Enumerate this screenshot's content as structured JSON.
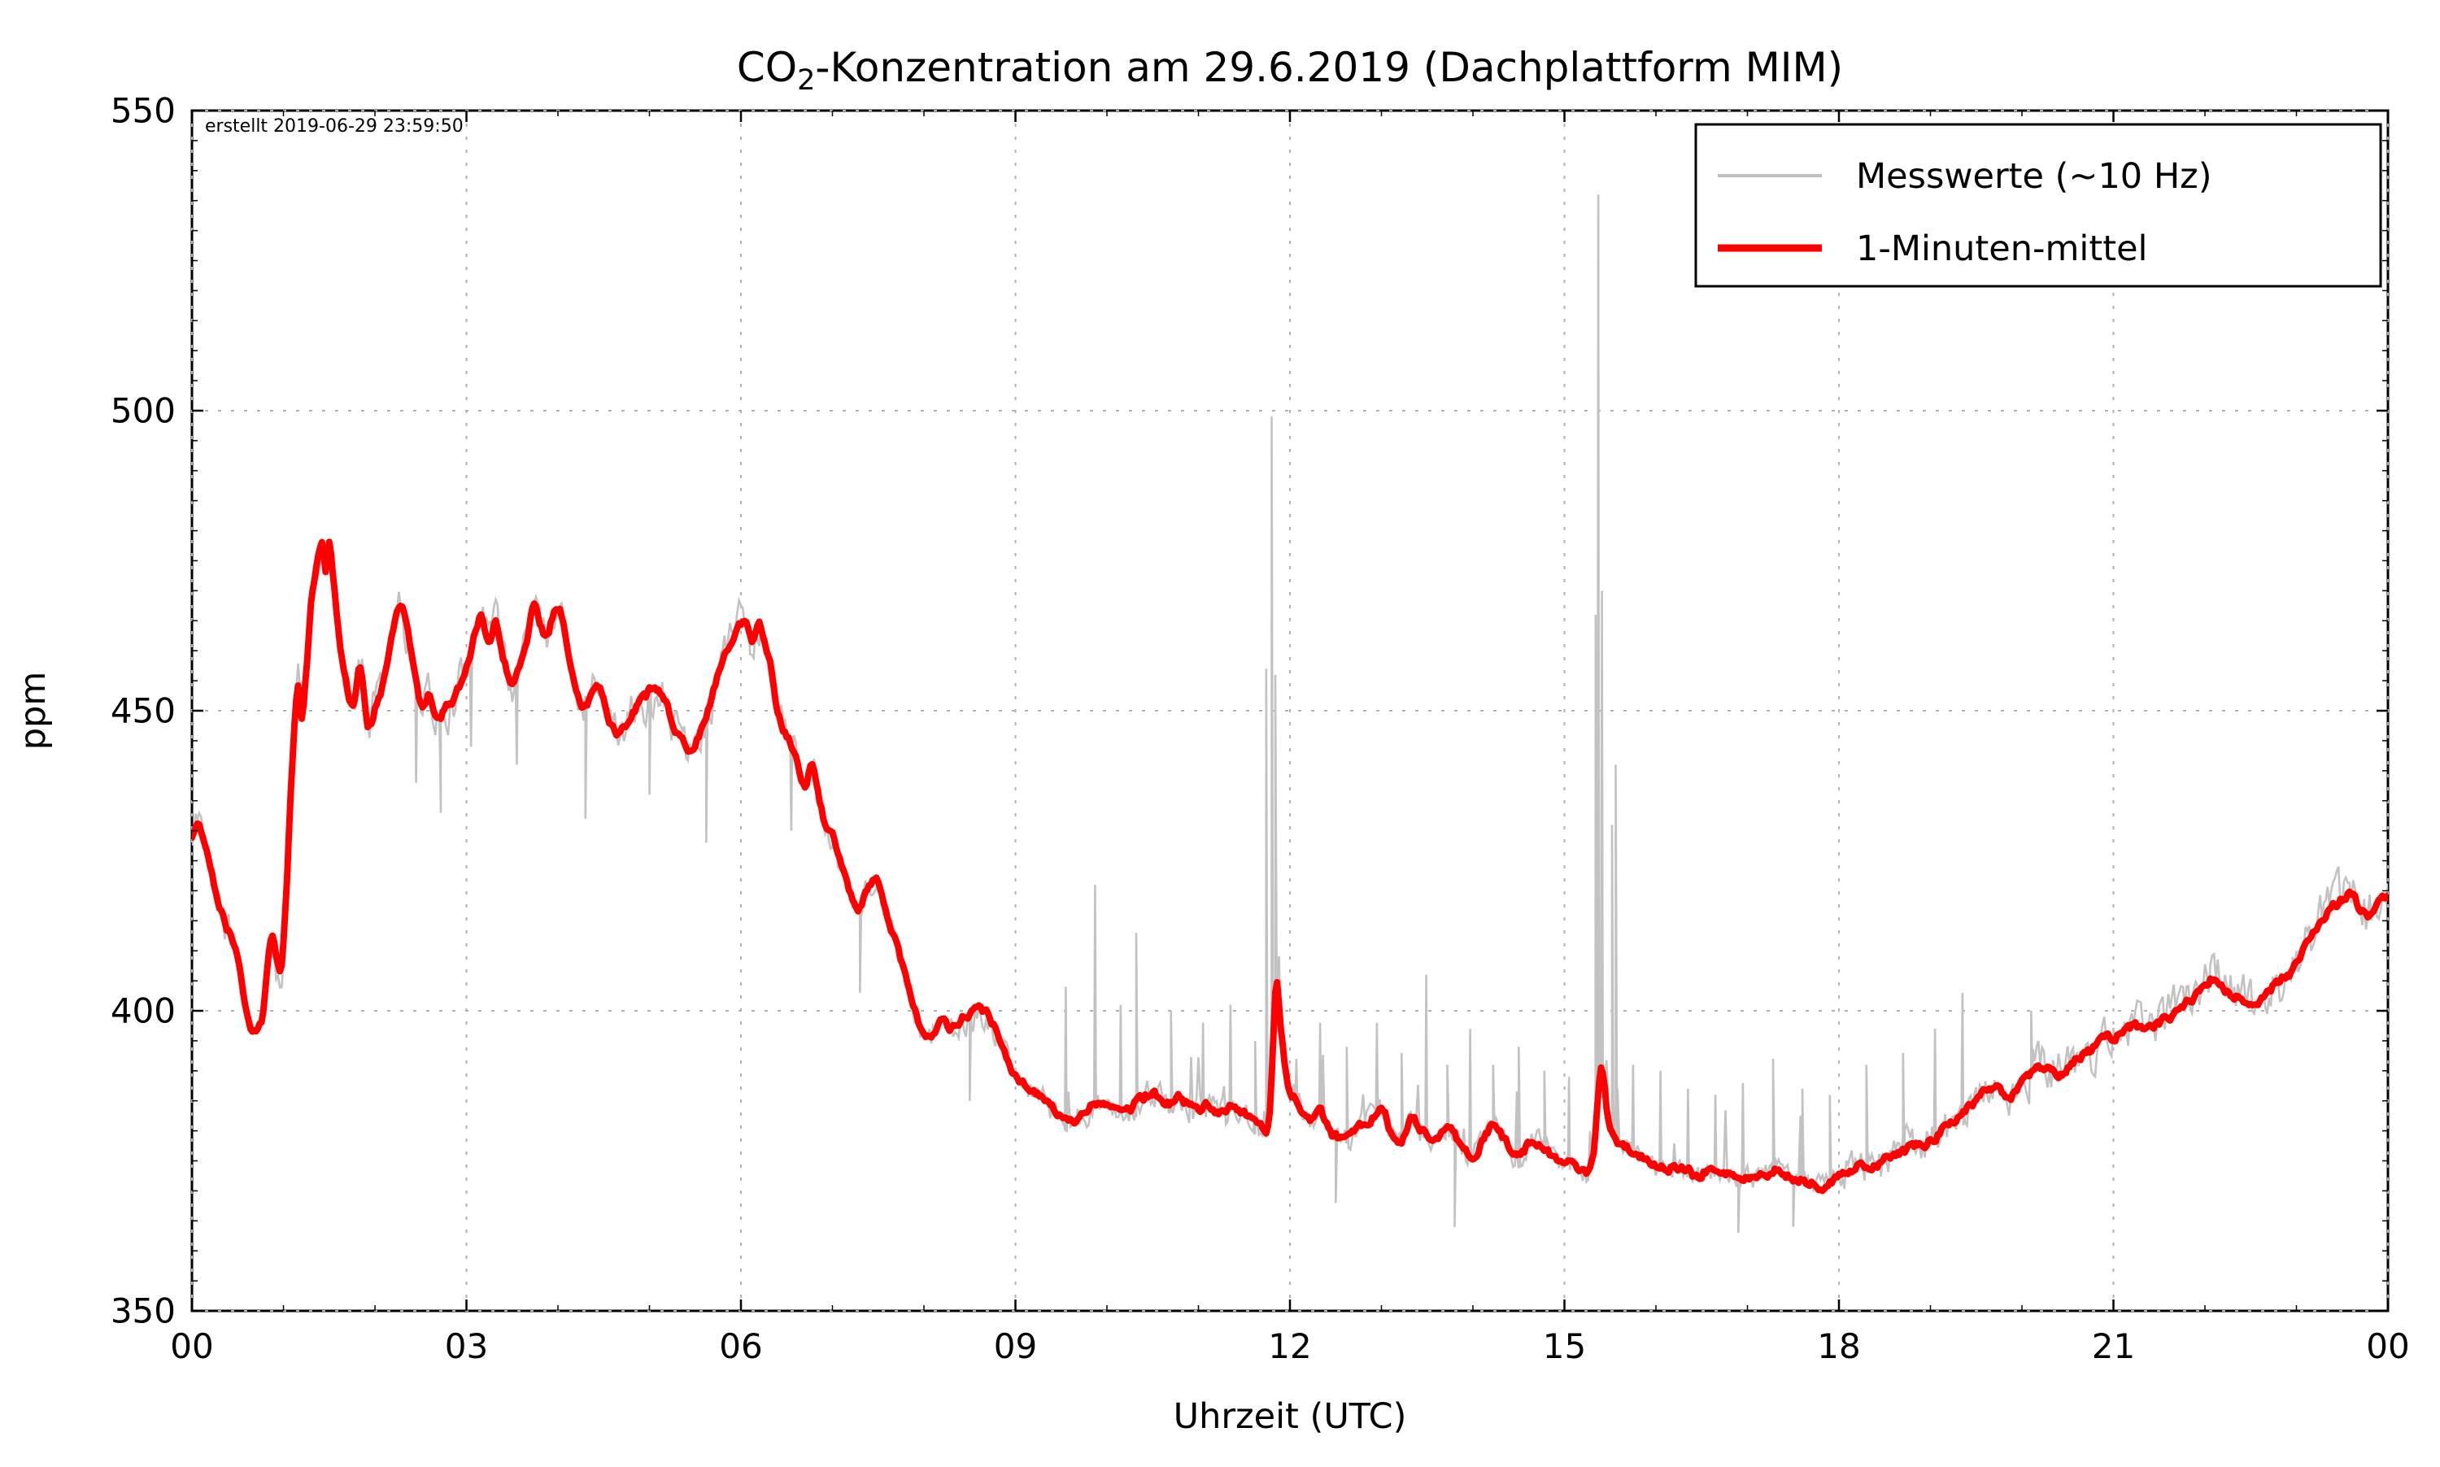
{
  "title": {
    "prefix": "CO",
    "sub": "2",
    "rest": "-Konzentration am 29.6.2019 (Dachplattform MIM)"
  },
  "created_note": "erstellt 2019-06-29 23:59:50",
  "axes": {
    "x_label": "Uhrzeit (UTC)",
    "y_label": "ppm",
    "x_tick_labels": [
      "00",
      "03",
      "06",
      "09",
      "12",
      "15",
      "18",
      "21",
      "00"
    ],
    "x_tick_hours": [
      0,
      3,
      6,
      9,
      12,
      15,
      18,
      21,
      24
    ],
    "x_minor_step_hours": 1,
    "y_tick_labels": [
      "350",
      "400",
      "450",
      "500",
      "550"
    ],
    "y_tick_values": [
      350,
      400,
      450,
      500,
      550
    ],
    "y_minor_step": 5,
    "x_min": 0,
    "x_max": 24,
    "y_min": 350,
    "y_max": 550
  },
  "legend": {
    "items": [
      {
        "label": "Messwerte (~10 Hz)",
        "color": "#c2c2c2",
        "line_width": 4
      },
      {
        "label": "1-Minuten-mittel",
        "color": "#ff0000",
        "line_width": 9
      }
    ]
  },
  "colors": {
    "measurement": "#c2c2c2",
    "mean": "#ff0000",
    "grid": "#b0b0b0",
    "spine": "#000000",
    "note": "#999999",
    "background": "#ffffff"
  },
  "chart_data": {
    "type": "line",
    "title": "CO2-Konzentration am 29.6.2019 (Dachplattform MIM)",
    "xlabel": "Uhrzeit (UTC)",
    "ylabel": "ppm",
    "xlim": [
      0,
      24
    ],
    "ylim": [
      350,
      550
    ],
    "grid": true,
    "legend_position": "upper right",
    "annotations": [
      {
        "text": "erstellt 2019-06-29 23:59:50",
        "position": "top-left"
      }
    ],
    "seed": 20190629,
    "series": [
      {
        "name": "Messwerte (~10 Hz)",
        "color": "#c2c2c2",
        "kind": "raw_10hz_band_around_mean",
        "noise_segments": [
          [
            0,
            1.05,
            5.5
          ],
          [
            1.05,
            6.35,
            6.0
          ],
          [
            6.35,
            9.5,
            4.5
          ],
          [
            9.5,
            12,
            3.8
          ],
          [
            12,
            15.3,
            3.2
          ],
          [
            15.3,
            18,
            3.0
          ],
          [
            18,
            20,
            5.5
          ],
          [
            20,
            24,
            6.5
          ]
        ],
        "bursts": {
          "t0": 9.5,
          "t1": 18,
          "prob": 0.028,
          "min": 4,
          "max": 12
        },
        "spikes_up": [
          [
            9.55,
            404
          ],
          [
            9.87,
            421
          ],
          [
            10.15,
            401
          ],
          [
            10.32,
            413
          ],
          [
            10.7,
            400
          ],
          [
            11.05,
            398
          ],
          [
            11.35,
            401
          ],
          [
            11.62,
            395
          ],
          [
            11.74,
            457
          ],
          [
            11.8,
            499
          ],
          [
            11.84,
            456
          ],
          [
            12.07,
            392
          ],
          [
            12.33,
            398
          ],
          [
            12.62,
            394
          ],
          [
            12.95,
            398
          ],
          [
            13.22,
            393
          ],
          [
            13.49,
            406
          ],
          [
            13.72,
            391
          ],
          [
            13.97,
            397
          ],
          [
            14.22,
            391
          ],
          [
            14.5,
            394
          ],
          [
            14.78,
            390
          ],
          [
            15.05,
            389
          ],
          [
            15.34,
            466
          ],
          [
            15.37,
            536
          ],
          [
            15.41,
            470
          ],
          [
            15.52,
            431
          ],
          [
            15.56,
            441
          ],
          [
            15.75,
            391
          ],
          [
            16.05,
            390
          ],
          [
            16.35,
            387
          ],
          [
            16.65,
            386
          ],
          [
            16.95,
            388
          ],
          [
            17.28,
            392
          ],
          [
            17.6,
            387
          ],
          [
            17.9,
            386
          ],
          [
            18.3,
            391
          ],
          [
            18.7,
            393
          ],
          [
            19.05,
            397
          ],
          [
            19.35,
            403
          ],
          [
            20.1,
            400
          ]
        ],
        "spikes_down": [
          [
            2.45,
            438
          ],
          [
            2.72,
            433
          ],
          [
            3.05,
            444
          ],
          [
            3.55,
            441
          ],
          [
            4.3,
            432
          ],
          [
            5.0,
            436
          ],
          [
            5.62,
            428
          ],
          [
            6.55,
            430
          ],
          [
            7.3,
            403
          ],
          [
            8.5,
            385
          ],
          [
            12.5,
            368
          ],
          [
            13.8,
            364
          ],
          [
            16.9,
            363
          ],
          [
            17.5,
            364
          ]
        ]
      },
      {
        "name": "1-Minuten-mittel",
        "color": "#ff0000",
        "kind": "one_minute_mean",
        "keypoints": [
          [
            0.0,
            428.5
          ],
          [
            0.07,
            431
          ],
          [
            0.15,
            427
          ],
          [
            0.25,
            420
          ],
          [
            0.35,
            415
          ],
          [
            0.45,
            411.5
          ],
          [
            0.52,
            408
          ],
          [
            0.58,
            402
          ],
          [
            0.63,
            398
          ],
          [
            0.68,
            396.5
          ],
          [
            0.73,
            397.5
          ],
          [
            0.78,
            400
          ],
          [
            0.84,
            409
          ],
          [
            0.88,
            412
          ],
          [
            0.93,
            407.5
          ],
          [
            0.97,
            406
          ],
          [
            1.03,
            419
          ],
          [
            1.08,
            437
          ],
          [
            1.13,
            450
          ],
          [
            1.16,
            455
          ],
          [
            1.2,
            449
          ],
          [
            1.25,
            457
          ],
          [
            1.3,
            468
          ],
          [
            1.36,
            474
          ],
          [
            1.42,
            477.5
          ],
          [
            1.46,
            473
          ],
          [
            1.5,
            478
          ],
          [
            1.56,
            470
          ],
          [
            1.62,
            461
          ],
          [
            1.7,
            453.5
          ],
          [
            1.77,
            450.5
          ],
          [
            1.84,
            457.5
          ],
          [
            1.92,
            447.5
          ],
          [
            2.0,
            450.5
          ],
          [
            2.1,
            455.5
          ],
          [
            2.18,
            461.5
          ],
          [
            2.27,
            467.5
          ],
          [
            2.34,
            464
          ],
          [
            2.44,
            455.5
          ],
          [
            2.52,
            450.5
          ],
          [
            2.6,
            452.5
          ],
          [
            2.68,
            448.5
          ],
          [
            2.76,
            450
          ],
          [
            2.86,
            452
          ],
          [
            2.96,
            455.5
          ],
          [
            3.06,
            460.5
          ],
          [
            3.15,
            465.5
          ],
          [
            3.24,
            461.5
          ],
          [
            3.32,
            464.5
          ],
          [
            3.42,
            458
          ],
          [
            3.5,
            455
          ],
          [
            3.58,
            457
          ],
          [
            3.66,
            462
          ],
          [
            3.73,
            467.5
          ],
          [
            3.8,
            465
          ],
          [
            3.87,
            462
          ],
          [
            3.95,
            466
          ],
          [
            4.03,
            466
          ],
          [
            4.11,
            459.5
          ],
          [
            4.2,
            453.5
          ],
          [
            4.28,
            450
          ],
          [
            4.36,
            452
          ],
          [
            4.45,
            454
          ],
          [
            4.55,
            449
          ],
          [
            4.65,
            446
          ],
          [
            4.75,
            448
          ],
          [
            4.85,
            450.5
          ],
          [
            4.95,
            452
          ],
          [
            5.05,
            454
          ],
          [
            5.15,
            452.5
          ],
          [
            5.25,
            448.5
          ],
          [
            5.35,
            445.5
          ],
          [
            5.45,
            443.5
          ],
          [
            5.55,
            446
          ],
          [
            5.65,
            450.5
          ],
          [
            5.75,
            455.5
          ],
          [
            5.85,
            460
          ],
          [
            5.95,
            463
          ],
          [
            6.05,
            465
          ],
          [
            6.12,
            461
          ],
          [
            6.2,
            464
          ],
          [
            6.3,
            459.5
          ],
          [
            6.4,
            450.5
          ],
          [
            6.5,
            446
          ],
          [
            6.6,
            442.5
          ],
          [
            6.7,
            437.5
          ],
          [
            6.78,
            441
          ],
          [
            6.9,
            432.5
          ],
          [
            7.0,
            430
          ],
          [
            7.1,
            424.5
          ],
          [
            7.2,
            419
          ],
          [
            7.3,
            417
          ],
          [
            7.4,
            421
          ],
          [
            7.5,
            422
          ],
          [
            7.6,
            416
          ],
          [
            7.7,
            411
          ],
          [
            7.8,
            405.5
          ],
          [
            7.9,
            400
          ],
          [
            8.0,
            396.5
          ],
          [
            8.1,
            395.5
          ],
          [
            8.2,
            398
          ],
          [
            8.32,
            397
          ],
          [
            8.45,
            399
          ],
          [
            8.6,
            400
          ],
          [
            8.75,
            398
          ],
          [
            8.9,
            392.5
          ],
          [
            9.0,
            389.5
          ],
          [
            9.2,
            386.5
          ],
          [
            9.35,
            384.5
          ],
          [
            9.5,
            382.8
          ],
          [
            9.62,
            381.5
          ],
          [
            9.75,
            383
          ],
          [
            9.9,
            384.5
          ],
          [
            10.05,
            383.5
          ],
          [
            10.2,
            382.5
          ],
          [
            10.35,
            385
          ],
          [
            10.5,
            386.2
          ],
          [
            10.65,
            384.5
          ],
          [
            10.8,
            385.5
          ],
          [
            10.95,
            383.5
          ],
          [
            11.1,
            384.5
          ],
          [
            11.25,
            383
          ],
          [
            11.38,
            384
          ],
          [
            11.55,
            382
          ],
          [
            11.7,
            380.5
          ],
          [
            11.78,
            383
          ],
          [
            11.85,
            404.5
          ],
          [
            11.9,
            397
          ],
          [
            11.97,
            388
          ],
          [
            12.05,
            385.5
          ],
          [
            12.15,
            383
          ],
          [
            12.25,
            381.5
          ],
          [
            12.33,
            383
          ],
          [
            12.45,
            379.5
          ],
          [
            12.58,
            378.5
          ],
          [
            12.72,
            380
          ],
          [
            12.87,
            382
          ],
          [
            13.0,
            383.8
          ],
          [
            13.1,
            380
          ],
          [
            13.2,
            378
          ],
          [
            13.32,
            381.8
          ],
          [
            13.45,
            380
          ],
          [
            13.6,
            378.5
          ],
          [
            13.73,
            381
          ],
          [
            13.9,
            377
          ],
          [
            14.02,
            376.5
          ],
          [
            14.12,
            379
          ],
          [
            14.22,
            381
          ],
          [
            14.36,
            378
          ],
          [
            14.5,
            375.5
          ],
          [
            14.65,
            378.5
          ],
          [
            14.8,
            377
          ],
          [
            14.95,
            374.5
          ],
          [
            15.1,
            374
          ],
          [
            15.25,
            373
          ],
          [
            15.32,
            376
          ],
          [
            15.4,
            390.5
          ],
          [
            15.47,
            383
          ],
          [
            15.55,
            379
          ],
          [
            15.7,
            377
          ],
          [
            15.85,
            375.5
          ],
          [
            16.0,
            374.5
          ],
          [
            16.15,
            374
          ],
          [
            16.3,
            373.5
          ],
          [
            16.45,
            372.5
          ],
          [
            16.6,
            373.8
          ],
          [
            16.75,
            373
          ],
          [
            16.9,
            372.5
          ],
          [
            17.05,
            372
          ],
          [
            17.2,
            373
          ],
          [
            17.35,
            373.8
          ],
          [
            17.5,
            372
          ],
          [
            17.65,
            371.5
          ],
          [
            17.8,
            371
          ],
          [
            17.95,
            372
          ],
          [
            18.1,
            373.5
          ],
          [
            18.25,
            374.5
          ],
          [
            18.4,
            374
          ],
          [
            18.55,
            375.5
          ],
          [
            18.7,
            376.5
          ],
          [
            18.85,
            377.5
          ],
          [
            19.0,
            378.5
          ],
          [
            19.12,
            380
          ],
          [
            19.25,
            381.5
          ],
          [
            19.4,
            383.5
          ],
          [
            19.55,
            386
          ],
          [
            19.7,
            387
          ],
          [
            19.85,
            385.5
          ],
          [
            20.0,
            388
          ],
          [
            20.15,
            390
          ],
          [
            20.3,
            391
          ],
          [
            20.45,
            389.5
          ],
          [
            20.6,
            392
          ],
          [
            20.75,
            393.5
          ],
          [
            20.9,
            395
          ],
          [
            21.05,
            396
          ],
          [
            21.2,
            397.5
          ],
          [
            21.35,
            396.5
          ],
          [
            21.5,
            398
          ],
          [
            21.65,
            399.5
          ],
          [
            21.8,
            401
          ],
          [
            21.95,
            403.5
          ],
          [
            22.1,
            405.5
          ],
          [
            22.25,
            403.5
          ],
          [
            22.4,
            402
          ],
          [
            22.55,
            401.5
          ],
          [
            22.7,
            403.5
          ],
          [
            22.85,
            405.5
          ],
          [
            23.0,
            407.5
          ],
          [
            23.1,
            410.5
          ],
          [
            23.2,
            413.5
          ],
          [
            23.35,
            416.5
          ],
          [
            23.5,
            418.5
          ],
          [
            23.6,
            419.5
          ],
          [
            23.7,
            417
          ],
          [
            23.8,
            416
          ],
          [
            23.9,
            418.5
          ],
          [
            24.0,
            419.5
          ]
        ]
      }
    ]
  }
}
